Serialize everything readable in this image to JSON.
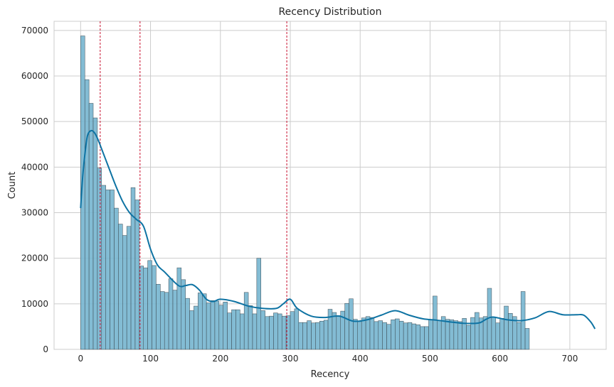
{
  "chart_data": {
    "type": "bar",
    "title": "Recency Distribution",
    "xlabel": "Recency",
    "ylabel": "Count",
    "xlim": [
      -38,
      752
    ],
    "ylim": [
      0,
      72000
    ],
    "xticks": [
      0,
      100,
      200,
      300,
      400,
      500,
      600,
      700
    ],
    "yticks": [
      0,
      10000,
      20000,
      30000,
      40000,
      50000,
      60000,
      70000
    ],
    "grid": true,
    "bin_start": 0,
    "bin_width": 6,
    "bar_color": "#75b5cf",
    "bar_edge_color": "#3d4a52",
    "kde_color": "#0e73a3",
    "vline_color": "#c8102e",
    "values": [
      68800,
      59200,
      54000,
      50800,
      39800,
      36000,
      35000,
      35000,
      31000,
      27500,
      25000,
      27000,
      35500,
      32800,
      18300,
      17900,
      19500,
      18400,
      14300,
      12700,
      12500,
      15500,
      13000,
      17900,
      15300,
      11200,
      8500,
      9500,
      12400,
      12200,
      10200,
      10700,
      10600,
      9700,
      10400,
      8000,
      8700,
      8700,
      7800,
      12500,
      9600,
      7800,
      20000,
      8500,
      7200,
      7300,
      8000,
      7800,
      7300,
      7400,
      8300,
      8900,
      5900,
      5900,
      6300,
      5800,
      5900,
      6200,
      6400,
      8800,
      8100,
      7400,
      8400,
      10100,
      11100,
      6600,
      6100,
      6900,
      7200,
      7000,
      6100,
      6300,
      5900,
      5500,
      6500,
      6700,
      6200,
      5800,
      5900,
      5600,
      5400,
      5000,
      5000,
      6500,
      11700,
      6400,
      7200,
      6600,
      6500,
      6300,
      6100,
      6800,
      5300,
      7000,
      8100,
      6900,
      7200,
      13400,
      7000,
      5800,
      6800,
      9500,
      7900,
      7200,
      5900,
      12700,
      4600
    ],
    "kde_x": [
      0,
      3,
      7,
      10,
      15,
      20,
      25,
      30,
      40,
      50,
      60,
      70,
      80,
      90,
      100,
      110,
      120,
      140,
      150,
      160,
      170,
      180,
      190,
      200,
      220,
      240,
      260,
      280,
      290,
      300,
      310,
      330,
      350,
      370,
      390,
      410,
      430,
      450,
      470,
      490,
      510,
      530,
      550,
      570,
      580,
      590,
      610,
      630,
      650,
      670,
      690,
      710,
      720,
      730,
      736
    ],
    "kde_y": [
      31000,
      38000,
      44000,
      47000,
      48000,
      47500,
      46000,
      44000,
      40000,
      36000,
      32500,
      30000,
      28500,
      27000,
      22000,
      18500,
      17000,
      14000,
      14000,
      14200,
      13000,
      11000,
      10500,
      11000,
      10500,
      9500,
      9000,
      9000,
      10000,
      11000,
      9000,
      7300,
      7000,
      7300,
      6200,
      6500,
      7500,
      8500,
      7500,
      6700,
      6400,
      6000,
      5700,
      5800,
      6600,
      7100,
      6500,
      6300,
      6900,
      8300,
      7600,
      7600,
      7500,
      6000,
      4500
    ],
    "vlines": [
      28,
      85,
      295
    ]
  }
}
